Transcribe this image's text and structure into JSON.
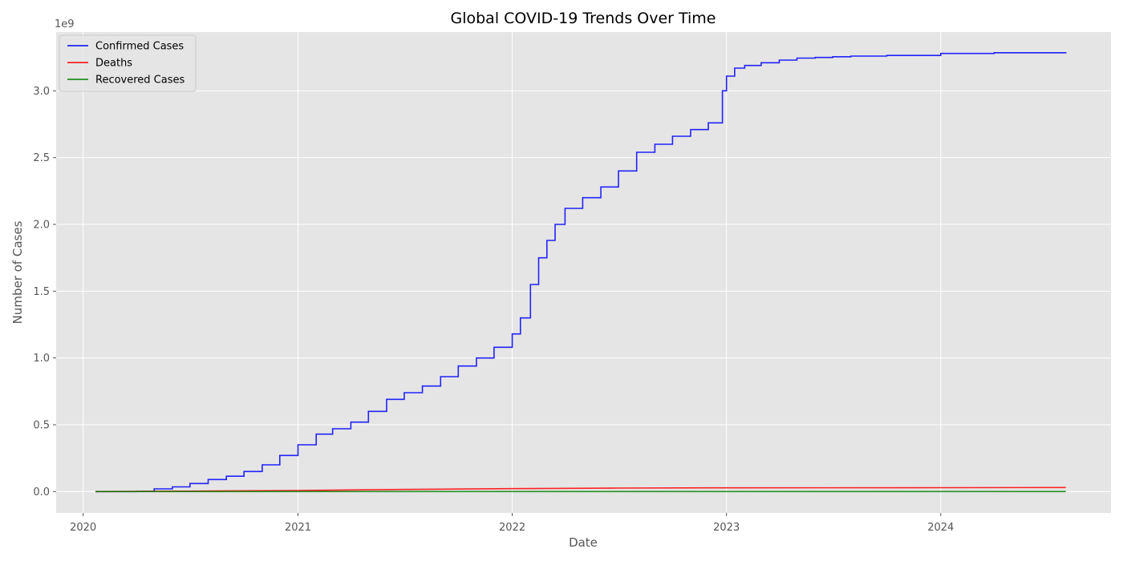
{
  "chart_data": {
    "type": "line",
    "title": "Global COVID-19 Trends Over Time",
    "xlabel": "Date",
    "ylabel": "Number of Cases",
    "y_offset_label": "1e9",
    "x_axis_type": "date",
    "xlim": [
      "2019-11-16",
      "2024-10-17"
    ],
    "ylim": [
      -160000000,
      3440000000
    ],
    "x_ticks": [
      {
        "date": "2020-01-01",
        "label": "2020"
      },
      {
        "date": "2021-01-01",
        "label": "2021"
      },
      {
        "date": "2022-01-01",
        "label": "2022"
      },
      {
        "date": "2023-01-01",
        "label": "2023"
      },
      {
        "date": "2024-01-01",
        "label": "2024"
      }
    ],
    "y_ticks": [
      {
        "value": 0,
        "label": "0.0"
      },
      {
        "value": 500000000,
        "label": "0.5"
      },
      {
        "value": 1000000000,
        "label": "1.0"
      },
      {
        "value": 1500000000,
        "label": "1.5"
      },
      {
        "value": 2000000000,
        "label": "2.0"
      },
      {
        "value": 2500000000,
        "label": "2.5"
      },
      {
        "value": 3000000000,
        "label": "3.0"
      }
    ],
    "grid": true,
    "legend_position": "top-left",
    "style": "ggplot",
    "series": [
      {
        "name": "Confirmed Cases",
        "color": "#0000ff",
        "step": true,
        "points": [
          [
            "2020-01-22",
            0
          ],
          [
            "2020-03-01",
            100000
          ],
          [
            "2020-04-01",
            1000000
          ],
          [
            "2020-05-01",
            20000000
          ],
          [
            "2020-06-01",
            35000000
          ],
          [
            "2020-07-01",
            60000000
          ],
          [
            "2020-08-01",
            90000000
          ],
          [
            "2020-09-01",
            115000000
          ],
          [
            "2020-10-01",
            150000000
          ],
          [
            "2020-11-01",
            200000000
          ],
          [
            "2020-12-01",
            270000000
          ],
          [
            "2021-01-01",
            350000000
          ],
          [
            "2021-02-01",
            430000000
          ],
          [
            "2021-03-01",
            470000000
          ],
          [
            "2021-04-01",
            520000000
          ],
          [
            "2021-05-01",
            600000000
          ],
          [
            "2021-06-01",
            690000000
          ],
          [
            "2021-07-01",
            740000000
          ],
          [
            "2021-08-01",
            790000000
          ],
          [
            "2021-09-01",
            860000000
          ],
          [
            "2021-10-01",
            940000000
          ],
          [
            "2021-11-01",
            1000000000
          ],
          [
            "2021-12-01",
            1080000000
          ],
          [
            "2022-01-01",
            1180000000
          ],
          [
            "2022-01-15",
            1300000000
          ],
          [
            "2022-02-01",
            1550000000
          ],
          [
            "2022-02-15",
            1750000000
          ],
          [
            "2022-03-01",
            1880000000
          ],
          [
            "2022-03-15",
            2000000000
          ],
          [
            "2022-04-01",
            2120000000
          ],
          [
            "2022-05-01",
            2200000000
          ],
          [
            "2022-06-01",
            2280000000
          ],
          [
            "2022-07-01",
            2400000000
          ],
          [
            "2022-08-01",
            2540000000
          ],
          [
            "2022-09-01",
            2600000000
          ],
          [
            "2022-10-01",
            2660000000
          ],
          [
            "2022-11-01",
            2710000000
          ],
          [
            "2022-12-01",
            2760000000
          ],
          [
            "2022-12-25",
            3000000000
          ],
          [
            "2023-01-01",
            3110000000
          ],
          [
            "2023-01-15",
            3170000000
          ],
          [
            "2023-02-01",
            3190000000
          ],
          [
            "2023-03-01",
            3210000000
          ],
          [
            "2023-04-01",
            3230000000
          ],
          [
            "2023-05-01",
            3245000000
          ],
          [
            "2023-06-01",
            3250000000
          ],
          [
            "2023-07-01",
            3255000000
          ],
          [
            "2023-08-01",
            3260000000
          ],
          [
            "2023-10-01",
            3265000000
          ],
          [
            "2024-01-01",
            3280000000
          ],
          [
            "2024-04-01",
            3285000000
          ],
          [
            "2024-08-01",
            3290000000
          ]
        ]
      },
      {
        "name": "Deaths",
        "color": "#ff0000",
        "step": false,
        "points": [
          [
            "2020-01-22",
            0
          ],
          [
            "2020-07-01",
            3000000
          ],
          [
            "2021-01-01",
            8000000
          ],
          [
            "2021-07-01",
            16000000
          ],
          [
            "2022-01-01",
            22000000
          ],
          [
            "2022-07-01",
            26000000
          ],
          [
            "2023-01-01",
            28000000
          ],
          [
            "2024-01-01",
            29000000
          ],
          [
            "2024-08-01",
            30000000
          ]
        ]
      },
      {
        "name": "Recovered Cases",
        "color": "#008000",
        "step": false,
        "points": [
          [
            "2020-01-22",
            0
          ],
          [
            "2021-06-01",
            0
          ],
          [
            "2022-06-01",
            0
          ],
          [
            "2023-06-01",
            0
          ],
          [
            "2024-08-01",
            0
          ]
        ]
      }
    ]
  }
}
